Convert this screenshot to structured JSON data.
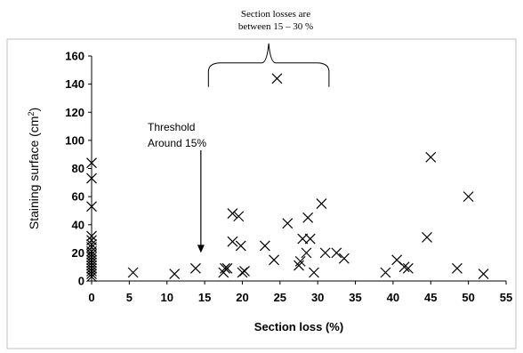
{
  "chart_data": {
    "type": "scatter",
    "title": "",
    "xlabel": "Section loss (%)",
    "ylabel": "Staining surface (cm²)",
    "ylabel_main": "Staining surface (cm",
    "ylabel_sup": "2",
    "ylabel_end": ")",
    "xlim": [
      0,
      55
    ],
    "ylim": [
      0,
      160
    ],
    "x_ticks": [
      0,
      5,
      10,
      15,
      20,
      25,
      30,
      35,
      40,
      45,
      50,
      55
    ],
    "y_ticks": [
      0,
      20,
      40,
      60,
      80,
      100,
      120,
      140,
      160
    ],
    "grid": false,
    "legend": "none",
    "marker": "x",
    "points": [
      [
        0,
        84
      ],
      [
        0,
        73
      ],
      [
        0,
        53
      ],
      [
        0,
        32
      ],
      [
        0,
        29
      ],
      [
        0,
        26
      ],
      [
        0,
        24
      ],
      [
        0,
        21
      ],
      [
        0,
        19
      ],
      [
        0,
        17
      ],
      [
        0,
        15
      ],
      [
        0,
        13
      ],
      [
        0,
        11
      ],
      [
        0,
        9
      ],
      [
        0,
        7
      ],
      [
        0,
        5
      ],
      [
        0,
        3
      ],
      [
        5.5,
        6
      ],
      [
        11,
        5
      ],
      [
        13.8,
        9
      ],
      [
        17.5,
        6
      ],
      [
        17.7,
        9
      ],
      [
        18,
        9
      ],
      [
        18.7,
        28
      ],
      [
        18.7,
        48
      ],
      [
        19.5,
        46
      ],
      [
        19.8,
        25
      ],
      [
        20,
        6
      ],
      [
        20.3,
        7
      ],
      [
        23,
        25
      ],
      [
        24.2,
        15
      ],
      [
        24.6,
        144
      ],
      [
        26,
        41
      ],
      [
        27.5,
        11
      ],
      [
        27.7,
        14
      ],
      [
        28,
        30
      ],
      [
        28.5,
        20
      ],
      [
        28.7,
        45
      ],
      [
        29,
        30
      ],
      [
        29.5,
        6
      ],
      [
        30.5,
        55
      ],
      [
        31,
        20
      ],
      [
        32.5,
        20
      ],
      [
        33.5,
        16
      ],
      [
        39,
        6
      ],
      [
        40.5,
        15
      ],
      [
        41.5,
        10
      ],
      [
        42,
        9
      ],
      [
        44.5,
        31
      ],
      [
        45,
        88
      ],
      [
        48.5,
        9
      ],
      [
        50,
        60
      ],
      [
        52,
        5
      ]
    ],
    "annotations": [
      {
        "id": "range",
        "lines": [
          "Section losses are",
          "between 15 – 30 %"
        ],
        "x_from": 15.5,
        "x_to": 31.5,
        "y_level": 138
      },
      {
        "id": "threshold",
        "lines": [
          "Threshold",
          "Around 15%"
        ],
        "arrow_x": 14.5,
        "arrow_y_from": 93,
        "arrow_y_to": 20
      }
    ]
  },
  "colors": {
    "marker": "#000000",
    "axis": "#000000",
    "background": "#ffffff",
    "border": "#c0c0c0"
  }
}
